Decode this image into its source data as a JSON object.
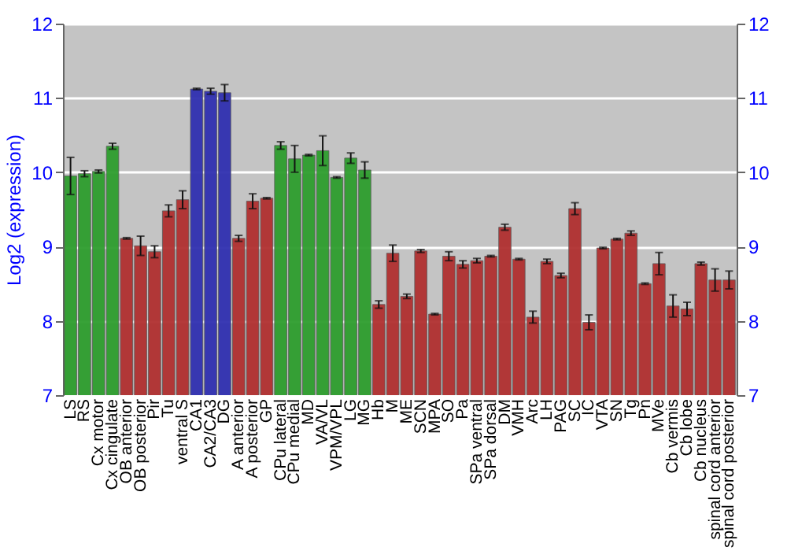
{
  "chart_data": {
    "type": "bar",
    "ylabel": "Log2 (expression)",
    "categories": [
      "LS",
      "RS",
      "Cx motor",
      "Cx cingulate",
      "OB anterior",
      "OB posterior",
      "Pir",
      "Tu",
      "ventral S",
      "CA1",
      "CA2/CA3",
      "DG",
      "A anterior",
      "A posterior",
      "GP",
      "CPu lateral",
      "CPu medial",
      "MD",
      "VA/VL",
      "VPM/VPL",
      "LG",
      "MG",
      "Hb",
      "M",
      "ME",
      "SCN",
      "MPA",
      "SO",
      "Pa",
      "SPa ventral",
      "SPa dorsal",
      "DM",
      "VMH",
      "Arc",
      "LH",
      "PAG",
      "SC",
      "IC",
      "VTA",
      "SN",
      "Tg",
      "Pn",
      "MVe",
      "Cb vermis",
      "Cb lobe",
      "Cb nucleus",
      "spinal cord anterior",
      "spinal cord posterior"
    ],
    "values": [
      9.95,
      9.98,
      10.01,
      10.35,
      9.11,
      9.01,
      8.93,
      9.48,
      9.63,
      11.12,
      11.09,
      11.07,
      9.11,
      9.61,
      9.65,
      10.36,
      10.18,
      10.23,
      10.29,
      9.93,
      10.19,
      10.03,
      8.22,
      8.91,
      8.33,
      8.94,
      8.09,
      8.87,
      8.76,
      8.81,
      8.87,
      9.26,
      8.83,
      8.05,
      8.8,
      8.61,
      9.51,
      7.98,
      8.98,
      9.1,
      9.18,
      8.5,
      8.77,
      8.2,
      8.16,
      8.77,
      8.55,
      8.55
    ],
    "errors": [
      0.25,
      0.04,
      0.02,
      0.04,
      0.01,
      0.13,
      0.08,
      0.08,
      0.12,
      0.01,
      0.04,
      0.11,
      0.04,
      0.1,
      0.01,
      0.05,
      0.18,
      0.01,
      0.2,
      0.01,
      0.07,
      0.11,
      0.05,
      0.11,
      0.03,
      0.02,
      0.01,
      0.06,
      0.05,
      0.03,
      0.01,
      0.04,
      0.01,
      0.08,
      0.03,
      0.03,
      0.08,
      0.1,
      0.01,
      0.01,
      0.03,
      0.01,
      0.15,
      0.15,
      0.09,
      0.02,
      0.15,
      0.12
    ],
    "colors": [
      "#2e9e2e",
      "#2e9e2e",
      "#2e9e2e",
      "#2e9e2e",
      "#b03030",
      "#b03030",
      "#b03030",
      "#b03030",
      "#b03030",
      "#3030b0",
      "#3030b0",
      "#3030b0",
      "#b03030",
      "#b03030",
      "#b03030",
      "#2e9e2e",
      "#2e9e2e",
      "#2e9e2e",
      "#2e9e2e",
      "#2e9e2e",
      "#2e9e2e",
      "#2e9e2e",
      "#b03030",
      "#b03030",
      "#b03030",
      "#b03030",
      "#b03030",
      "#b03030",
      "#b03030",
      "#b03030",
      "#b03030",
      "#b03030",
      "#b03030",
      "#b03030",
      "#b03030",
      "#b03030",
      "#b03030",
      "#b03030",
      "#b03030",
      "#b03030",
      "#b03030",
      "#b03030",
      "#b03030",
      "#b03030",
      "#b03030",
      "#b03030",
      "#b03030",
      "#b03030"
    ],
    "ylim": [
      7,
      12
    ],
    "yticks": [
      7,
      8,
      9,
      10,
      11,
      12
    ],
    "y2lim": [
      7,
      12
    ],
    "y2ticks": [
      7,
      8,
      9,
      10,
      11,
      12
    ],
    "grid": "y"
  }
}
